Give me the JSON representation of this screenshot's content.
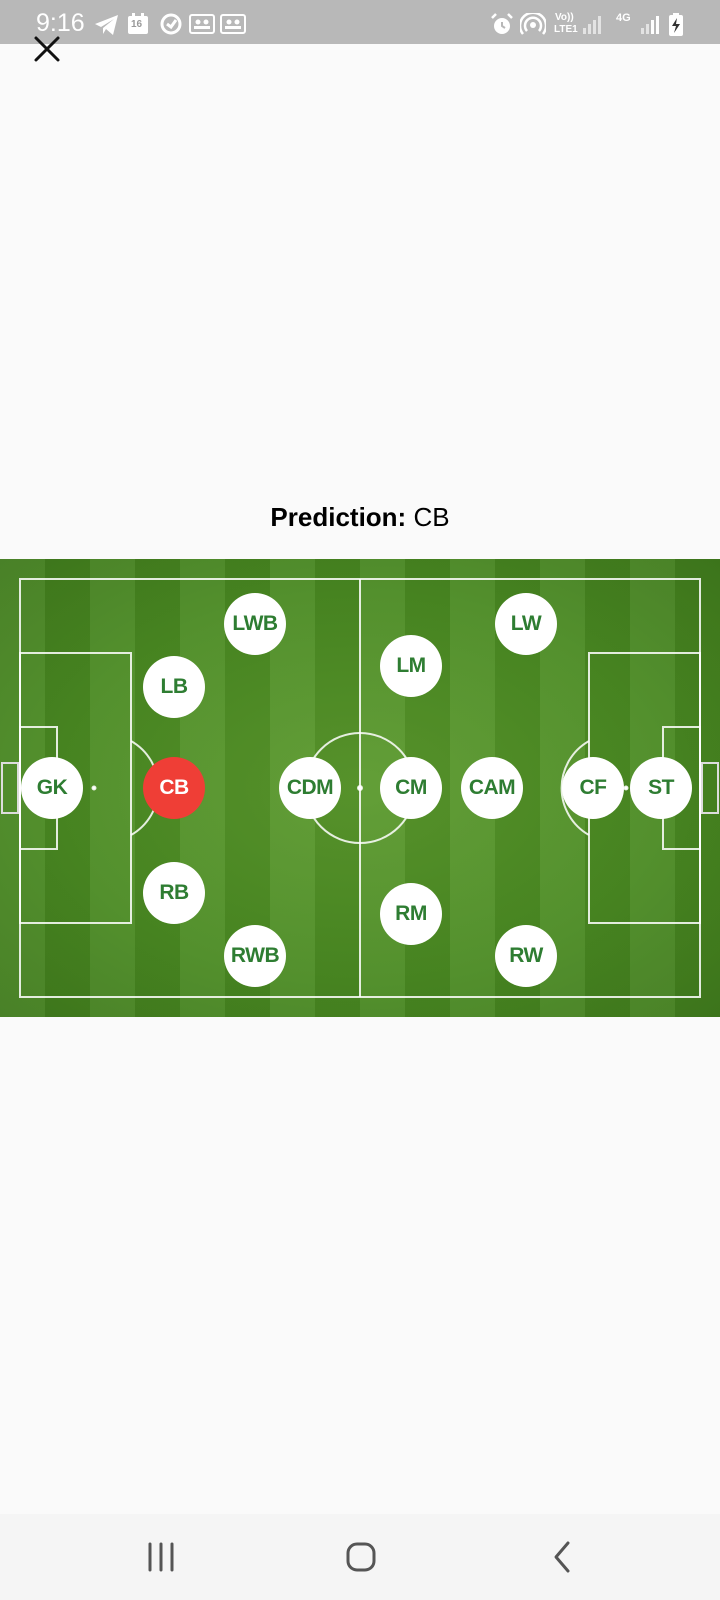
{
  "status_bar": {
    "time": "9:16",
    "calendar_day": "16",
    "volte": "Vo))",
    "lte": "LTE1",
    "network": "4G",
    "icons": [
      "telegram-icon",
      "calendar-icon",
      "app-icon",
      "gallery-icon",
      "gallery-icon",
      "alarm-icon",
      "hotspot-icon",
      "signal-icon",
      "battery-charging-icon"
    ]
  },
  "close_icon": "close-icon",
  "prediction": {
    "label": "Prediction:",
    "value": "CB"
  },
  "pitch": {
    "positions": [
      {
        "id": "GK",
        "label": "GK"
      },
      {
        "id": "LB",
        "label": "LB"
      },
      {
        "id": "CB",
        "label": "CB",
        "selected": true
      },
      {
        "id": "RB",
        "label": "RB"
      },
      {
        "id": "LWB",
        "label": "LWB"
      },
      {
        "id": "RWB",
        "label": "RWB"
      },
      {
        "id": "CDM",
        "label": "CDM"
      },
      {
        "id": "LM",
        "label": "LM"
      },
      {
        "id": "CM",
        "label": "CM"
      },
      {
        "id": "RM",
        "label": "RM"
      },
      {
        "id": "CAM",
        "label": "CAM"
      },
      {
        "id": "LW",
        "label": "LW"
      },
      {
        "id": "RW",
        "label": "RW"
      },
      {
        "id": "CF",
        "label": "CF"
      },
      {
        "id": "ST",
        "label": "ST"
      }
    ],
    "colors": {
      "selected": "#ef3e36",
      "label": "#2e7d32",
      "chip": "#ffffff"
    }
  },
  "nav_bar": {
    "recent": "recent-apps-icon",
    "home": "home-icon",
    "back": "back-icon"
  }
}
